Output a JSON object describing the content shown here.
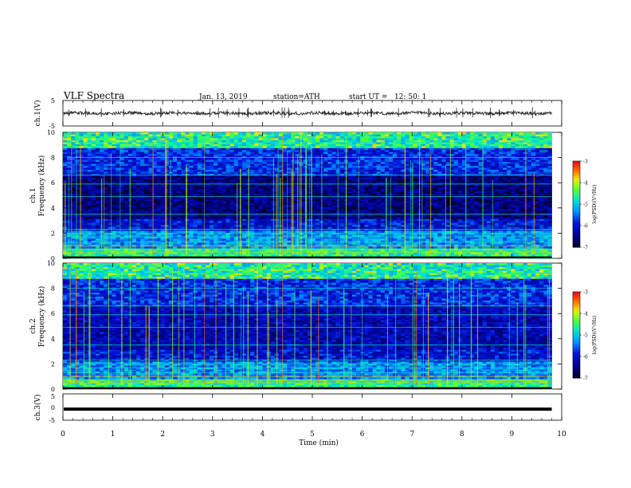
{
  "header": {
    "title": "VLF Spectra",
    "date": "Jan. 13, 2019",
    "station": "station=ATH",
    "start_time": "start UT =   12: 50: 1"
  },
  "chart_data": [
    {
      "panel": "ch1-voltage",
      "type": "line",
      "ylabel": "ch.1(V)",
      "ylim": [
        -5,
        5
      ],
      "y_ticks": [
        "5",
        "-5"
      ],
      "xlim": [
        0,
        10
      ],
      "waveform_baseline": 0,
      "waveform_amplitude": 0.6,
      "data_extent_min": 9.8
    },
    {
      "panel": "ch1-spectrogram",
      "type": "heatmap",
      "ylabel": "Frequency (kHz)",
      "channel_label": "ch.1",
      "ylim": [
        0,
        10
      ],
      "y_ticks": [
        "0",
        "2",
        "4",
        "6",
        "8",
        "10"
      ],
      "xlim": [
        0,
        10
      ],
      "data_extent_min": 9.8,
      "colorbar": {
        "label": "log(PSD)(V²/Hz)",
        "range": [
          -7,
          -3
        ],
        "ticks": [
          "-3",
          "-4",
          "-5",
          "-6",
          "-7"
        ]
      }
    },
    {
      "panel": "ch2-spectrogram",
      "type": "heatmap",
      "ylabel": "Frequency (kHz)",
      "channel_label": "ch.2",
      "ylim": [
        0,
        10
      ],
      "y_ticks": [
        "0",
        "2",
        "4",
        "6",
        "8",
        "10"
      ],
      "xlim": [
        0,
        10
      ],
      "data_extent_min": 9.8,
      "colorbar": {
        "label": "log(PSD)(V²/Hz)",
        "range": [
          -7,
          -3
        ],
        "ticks": [
          "-3",
          "-4",
          "-5",
          "-6",
          "-7"
        ]
      }
    },
    {
      "panel": "ch3-voltage",
      "type": "line",
      "ylabel": "ch.3(V)",
      "ylim": [
        -5,
        5
      ],
      "y_ticks": [
        "5",
        "0",
        "-5"
      ],
      "xlim": [
        0,
        10
      ],
      "flat_value": -0.8,
      "data_extent_min": 9.8
    }
  ],
  "x_axis": {
    "label": "Time (min)",
    "ticks": [
      "0",
      "1",
      "2",
      "3",
      "4",
      "5",
      "6",
      "7",
      "8",
      "9",
      "10"
    ]
  },
  "colors": {
    "waveform": "#222222",
    "spectrogram_low": "#00003a",
    "spectrogram_high": "#ff2000",
    "axis": "#000000"
  }
}
